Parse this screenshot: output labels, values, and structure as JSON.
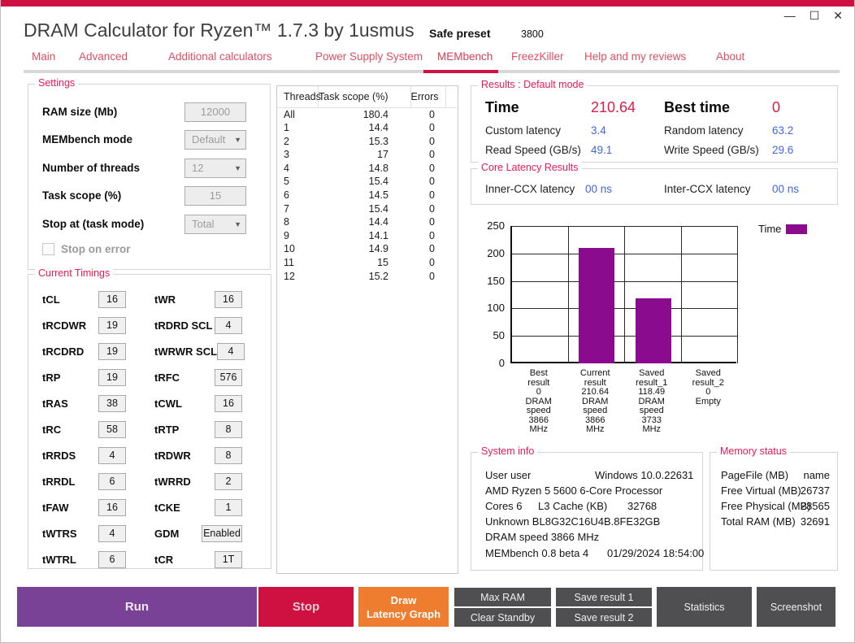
{
  "window": {
    "title": "DRAM Calculator for Ryzen™ 1.7.3 by 1usmus",
    "preset_label": "Safe preset",
    "preset_value": "3800",
    "controls": {
      "minimize": "—",
      "maximize": "☐",
      "close": "✕"
    }
  },
  "nav": {
    "tabs": [
      {
        "label": "Main",
        "active": false
      },
      {
        "label": "Advanced",
        "active": false
      },
      {
        "label": "Additional calculators",
        "active": false
      },
      {
        "label": "Power Supply System",
        "active": false
      },
      {
        "label": "MEMbench",
        "active": true
      },
      {
        "label": "FreezKiller",
        "active": false
      },
      {
        "label": "Help and my reviews",
        "active": false
      },
      {
        "label": "About",
        "active": false
      }
    ]
  },
  "settings": {
    "group_label": "Settings",
    "fields": [
      {
        "label": "RAM size (Mb)",
        "value": "12000",
        "type": "input"
      },
      {
        "label": "MEMbench mode",
        "value": "Default",
        "type": "select"
      },
      {
        "label": "Number of threads",
        "value": "12",
        "type": "select"
      },
      {
        "label": "Task scope (%)",
        "value": "15",
        "type": "input"
      },
      {
        "label": "Stop at (task mode)",
        "value": "Total",
        "type": "select"
      }
    ],
    "checkbox": {
      "label": "Stop on error",
      "checked": false
    }
  },
  "timings": {
    "group_label": "Current Timings",
    "left": [
      {
        "label": "tCL",
        "value": "16"
      },
      {
        "label": "tRCDWR",
        "value": "19"
      },
      {
        "label": "tRCDRD",
        "value": "19"
      },
      {
        "label": "tRP",
        "value": "19"
      },
      {
        "label": "tRAS",
        "value": "38"
      },
      {
        "label": "tRC",
        "value": "58"
      },
      {
        "label": "tRRDS",
        "value": "4"
      },
      {
        "label": "tRRDL",
        "value": "6"
      },
      {
        "label": "tFAW",
        "value": "16"
      },
      {
        "label": "tWTRS",
        "value": "4"
      },
      {
        "label": "tWTRL",
        "value": "6"
      }
    ],
    "right": [
      {
        "label": "tWR",
        "value": "16"
      },
      {
        "label": "tRDRD SCL",
        "value": "4"
      },
      {
        "label": "tWRWR SCL",
        "value": "4"
      },
      {
        "label": "tRFC",
        "value": "576"
      },
      {
        "label": "tCWL",
        "value": "16"
      },
      {
        "label": "tRTP",
        "value": "8"
      },
      {
        "label": "tRDWR",
        "value": "8"
      },
      {
        "label": "tWRRD",
        "value": "2"
      },
      {
        "label": "tCKE",
        "value": "1"
      },
      {
        "label": "GDM",
        "value": "Enabled"
      },
      {
        "label": "tCR",
        "value": "1T"
      }
    ]
  },
  "threads_table": {
    "headers": [
      "Threads",
      "Task scope (%)",
      "Errors"
    ],
    "rows": [
      [
        "All",
        "180.4",
        "0"
      ],
      [
        "1",
        "14.4",
        "0"
      ],
      [
        "2",
        "15.3",
        "0"
      ],
      [
        "3",
        "17",
        "0"
      ],
      [
        "4",
        "14.8",
        "0"
      ],
      [
        "5",
        "15.4",
        "0"
      ],
      [
        "6",
        "14.5",
        "0"
      ],
      [
        "7",
        "15.4",
        "0"
      ],
      [
        "8",
        "14.4",
        "0"
      ],
      [
        "9",
        "14.1",
        "0"
      ],
      [
        "10",
        "14.9",
        "0"
      ],
      [
        "11",
        "15",
        "0"
      ],
      [
        "12",
        "15.2",
        "0"
      ]
    ]
  },
  "results": {
    "group_label": "Results : Default mode",
    "time_label": "Time",
    "time_value": "210.64",
    "best_time_label": "Best time",
    "best_time_value": "0",
    "rows": [
      {
        "label": "Custom latency",
        "value": "3.4"
      },
      {
        "label": "Random latency",
        "value": "63.2"
      },
      {
        "label": "Read Speed (GB/s)",
        "value": "49.1"
      },
      {
        "label": "Write Speed (GB/s)",
        "value": "29.6"
      }
    ]
  },
  "core_latency": {
    "group_label": "Core Latency Results",
    "inner_label": "Inner-CCX latency",
    "inner_value": "00 ns",
    "inter_label": "Inter-CCX latency",
    "inter_value": "00 ns"
  },
  "chart_data": {
    "type": "bar",
    "series_name": "Time",
    "categories": [
      "Best\nresult\n0\nDRAM\nspeed\n3866\nMHz",
      "Current\nresult\n210.64\nDRAM\nspeed\n3866\nMHz",
      "Saved\nresult_1\n118.49\nDRAM\nspeed\n3733\nMHz",
      "Saved\nresult_2\n0\nEmpty"
    ],
    "values": [
      0,
      210.64,
      118.49,
      0
    ],
    "ylim": [
      0,
      250
    ],
    "yticks": [
      0,
      50,
      100,
      150,
      200,
      250
    ],
    "grid": true,
    "legend_position": "top-right",
    "bar_color": "#8B0B8F"
  },
  "system_info": {
    "group_label": "System info",
    "lines": [
      [
        "User user",
        "Windows 10.0.22631"
      ],
      [
        "AMD Ryzen 5 5600 6-Core Processor"
      ],
      [
        "Cores 6",
        "L3 Cache (KB)",
        "32768"
      ],
      [
        "Unknown BL8G32C16U4B.8FE32GB"
      ],
      [
        "DRAM speed 3866 MHz"
      ],
      [
        "MEMbench 0.8 beta 4",
        "01/29/2024 18:54:00"
      ]
    ]
  },
  "memory_status": {
    "group_label": "Memory status",
    "rows": [
      {
        "label": "PageFile (MB)",
        "value": "name"
      },
      {
        "label": "Free Virtual (MB)",
        "value": "26737"
      },
      {
        "label": "Free Physical (MB)",
        "value": "28565"
      },
      {
        "label": "Total RAM (MB)",
        "value": "32691"
      }
    ]
  },
  "action_bar": {
    "run": "Run",
    "stop": "Stop",
    "draw": "Draw\nLatency Graph",
    "max_ram": "Max RAM",
    "clear_standby": "Clear Standby",
    "save1": "Save result 1",
    "save2": "Save result 2",
    "statistics": "Statistics",
    "screenshot": "Screenshot"
  },
  "colors": {
    "accent_crimson": "#CE1141",
    "tab_red": "#DC4F64",
    "group_label_pink": "#EA1A57",
    "value_blue": "#4466DD",
    "value_red": "#E11C48",
    "bar_purple": "#8B0B8F",
    "run_purple": "#7A4297",
    "draw_orange": "#EF7D2F",
    "button_gray": "#4F4F51"
  }
}
